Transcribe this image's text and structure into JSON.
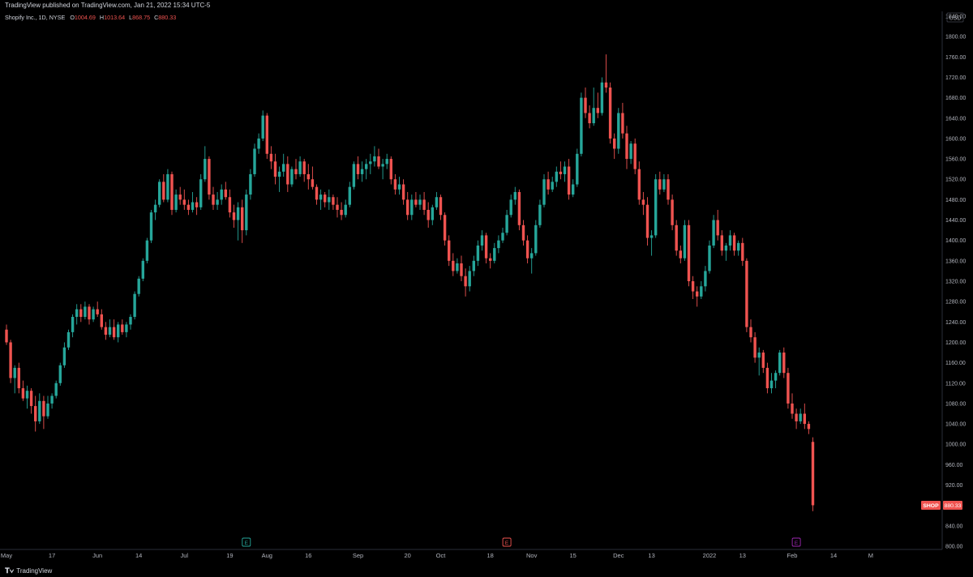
{
  "header": {
    "published": "TradingView published on TradingView.com, Jan 21, 2022 15:34 UTC-5"
  },
  "legend": {
    "symbol": "Shopify Inc., 1D, NYSE",
    "o_label": "O",
    "o": "1004.69",
    "h_label": "H",
    "h": "1013.64",
    "l_label": "L",
    "l": "868.75",
    "c_label": "C",
    "c": "880.33"
  },
  "price_axis": {
    "currency": "USD"
  },
  "last_price": {
    "ticker": "SHOP",
    "value": "880.33"
  },
  "events": [
    {
      "label": "E",
      "date_index": 58,
      "color": "#26a69a"
    },
    {
      "label": "E",
      "date_index": 121,
      "color": "#ef5350"
    },
    {
      "label": "E",
      "date_index": 191,
      "color": "#9c27b0"
    }
  ],
  "footer": {
    "brand": "TradingView"
  },
  "colors": {
    "up": "#26a69a",
    "down": "#ef5350",
    "axis_text": "#b2b5be",
    "bg": "#000000",
    "purple": "#9c27b0"
  },
  "chart_data": {
    "type": "candlestick",
    "ylim": [
      800,
      1840
    ],
    "y_ticks": [
      800,
      840,
      880,
      920,
      960,
      1000,
      1040,
      1080,
      1120,
      1160,
      1200,
      1240,
      1280,
      1320,
      1360,
      1400,
      1440,
      1480,
      1520,
      1560,
      1600,
      1640,
      1680,
      1720,
      1760,
      1800,
      1840
    ],
    "x_tick_labels": [
      {
        "label": "May",
        "i": 0
      },
      {
        "label": "17",
        "i": 11
      },
      {
        "label": "Jun",
        "i": 22
      },
      {
        "label": "14",
        "i": 32
      },
      {
        "label": "Jul",
        "i": 43
      },
      {
        "label": "19",
        "i": 54
      },
      {
        "label": "Aug",
        "i": 63
      },
      {
        "label": "16",
        "i": 73
      },
      {
        "label": "Sep",
        "i": 85
      },
      {
        "label": "20",
        "i": 97
      },
      {
        "label": "Oct",
        "i": 105
      },
      {
        "label": "18",
        "i": 117
      },
      {
        "label": "Nov",
        "i": 127
      },
      {
        "label": "15",
        "i": 137
      },
      {
        "label": "Dec",
        "i": 148
      },
      {
        "label": "13",
        "i": 156
      },
      {
        "label": "2022",
        "i": 170
      },
      {
        "label": "13",
        "i": 178
      },
      {
        "label": "Feb",
        "i": 190
      },
      {
        "label": "14",
        "i": 200
      },
      {
        "label": "M",
        "i": 209
      }
    ],
    "ohlc": [
      [
        1225,
        1235,
        1195,
        1200
      ],
      [
        1200,
        1205,
        1120,
        1130
      ],
      [
        1130,
        1155,
        1100,
        1150
      ],
      [
        1150,
        1160,
        1100,
        1110
      ],
      [
        1110,
        1125,
        1085,
        1090
      ],
      [
        1090,
        1115,
        1070,
        1105
      ],
      [
        1105,
        1110,
        1060,
        1075
      ],
      [
        1075,
        1095,
        1025,
        1045
      ],
      [
        1045,
        1100,
        1040,
        1085
      ],
      [
        1085,
        1095,
        1030,
        1055
      ],
      [
        1055,
        1095,
        1050,
        1080
      ],
      [
        1080,
        1100,
        1070,
        1095
      ],
      [
        1095,
        1125,
        1090,
        1120
      ],
      [
        1120,
        1160,
        1115,
        1155
      ],
      [
        1155,
        1200,
        1150,
        1190
      ],
      [
        1190,
        1225,
        1185,
        1220
      ],
      [
        1220,
        1255,
        1210,
        1250
      ],
      [
        1250,
        1275,
        1235,
        1265
      ],
      [
        1265,
        1275,
        1240,
        1250
      ],
      [
        1250,
        1280,
        1245,
        1270
      ],
      [
        1270,
        1275,
        1235,
        1245
      ],
      [
        1245,
        1270,
        1240,
        1265
      ],
      [
        1265,
        1280,
        1250,
        1255
      ],
      [
        1255,
        1265,
        1225,
        1230
      ],
      [
        1230,
        1240,
        1205,
        1215
      ],
      [
        1215,
        1245,
        1210,
        1230
      ],
      [
        1230,
        1245,
        1205,
        1210
      ],
      [
        1210,
        1240,
        1200,
        1235
      ],
      [
        1235,
        1245,
        1215,
        1220
      ],
      [
        1220,
        1240,
        1210,
        1235
      ],
      [
        1235,
        1255,
        1225,
        1250
      ],
      [
        1250,
        1300,
        1245,
        1295
      ],
      [
        1295,
        1330,
        1290,
        1325
      ],
      [
        1325,
        1365,
        1320,
        1360
      ],
      [
        1360,
        1405,
        1355,
        1400
      ],
      [
        1400,
        1460,
        1395,
        1455
      ],
      [
        1455,
        1480,
        1440,
        1470
      ],
      [
        1470,
        1520,
        1465,
        1515
      ],
      [
        1515,
        1530,
        1475,
        1480
      ],
      [
        1480,
        1540,
        1475,
        1530
      ],
      [
        1530,
        1535,
        1450,
        1460
      ],
      [
        1460,
        1500,
        1455,
        1490
      ],
      [
        1490,
        1505,
        1470,
        1480
      ],
      [
        1480,
        1500,
        1460,
        1470
      ],
      [
        1470,
        1480,
        1450,
        1460
      ],
      [
        1460,
        1495,
        1455,
        1475
      ],
      [
        1475,
        1485,
        1450,
        1465
      ],
      [
        1465,
        1530,
        1460,
        1520
      ],
      [
        1520,
        1585,
        1515,
        1560
      ],
      [
        1560,
        1565,
        1480,
        1490
      ],
      [
        1490,
        1505,
        1460,
        1470
      ],
      [
        1470,
        1495,
        1460,
        1480
      ],
      [
        1480,
        1510,
        1470,
        1500
      ],
      [
        1500,
        1515,
        1480,
        1485
      ],
      [
        1485,
        1500,
        1445,
        1455
      ],
      [
        1455,
        1470,
        1425,
        1440
      ],
      [
        1440,
        1475,
        1400,
        1465
      ],
      [
        1465,
        1480,
        1395,
        1420
      ],
      [
        1420,
        1500,
        1410,
        1490
      ],
      [
        1490,
        1540,
        1480,
        1530
      ],
      [
        1530,
        1590,
        1525,
        1580
      ],
      [
        1580,
        1610,
        1570,
        1600
      ],
      [
        1600,
        1655,
        1595,
        1645
      ],
      [
        1645,
        1650,
        1560,
        1570
      ],
      [
        1570,
        1585,
        1540,
        1555
      ],
      [
        1555,
        1570,
        1510,
        1525
      ],
      [
        1525,
        1545,
        1495,
        1535
      ],
      [
        1535,
        1570,
        1525,
        1550
      ],
      [
        1550,
        1565,
        1495,
        1510
      ],
      [
        1510,
        1545,
        1505,
        1540
      ],
      [
        1540,
        1560,
        1520,
        1530
      ],
      [
        1530,
        1565,
        1525,
        1555
      ],
      [
        1555,
        1560,
        1515,
        1530
      ],
      [
        1530,
        1550,
        1500,
        1520
      ],
      [
        1520,
        1545,
        1500,
        1505
      ],
      [
        1505,
        1510,
        1470,
        1480
      ],
      [
        1480,
        1500,
        1460,
        1490
      ],
      [
        1490,
        1495,
        1465,
        1475
      ],
      [
        1475,
        1500,
        1460,
        1485
      ],
      [
        1485,
        1490,
        1460,
        1470
      ],
      [
        1470,
        1485,
        1445,
        1460
      ],
      [
        1460,
        1475,
        1440,
        1450
      ],
      [
        1450,
        1480,
        1445,
        1470
      ],
      [
        1470,
        1515,
        1465,
        1505
      ],
      [
        1505,
        1555,
        1500,
        1550
      ],
      [
        1550,
        1565,
        1520,
        1530
      ],
      [
        1530,
        1555,
        1515,
        1540
      ],
      [
        1540,
        1560,
        1520,
        1550
      ],
      [
        1550,
        1570,
        1530,
        1555
      ],
      [
        1555,
        1585,
        1545,
        1565
      ],
      [
        1565,
        1580,
        1540,
        1545
      ],
      [
        1545,
        1560,
        1520,
        1550
      ],
      [
        1550,
        1570,
        1540,
        1560
      ],
      [
        1560,
        1565,
        1510,
        1520
      ],
      [
        1520,
        1530,
        1490,
        1500
      ],
      [
        1500,
        1525,
        1490,
        1510
      ],
      [
        1510,
        1520,
        1470,
        1480
      ],
      [
        1480,
        1495,
        1440,
        1450
      ],
      [
        1450,
        1490,
        1440,
        1480
      ],
      [
        1480,
        1495,
        1465,
        1470
      ],
      [
        1470,
        1490,
        1460,
        1480
      ],
      [
        1480,
        1495,
        1450,
        1460
      ],
      [
        1460,
        1475,
        1425,
        1440
      ],
      [
        1440,
        1470,
        1430,
        1465
      ],
      [
        1465,
        1495,
        1460,
        1485
      ],
      [
        1485,
        1490,
        1440,
        1450
      ],
      [
        1450,
        1455,
        1390,
        1400
      ],
      [
        1400,
        1410,
        1350,
        1360
      ],
      [
        1360,
        1375,
        1330,
        1340
      ],
      [
        1340,
        1365,
        1335,
        1355
      ],
      [
        1355,
        1370,
        1320,
        1330
      ],
      [
        1330,
        1345,
        1290,
        1310
      ],
      [
        1310,
        1350,
        1300,
        1340
      ],
      [
        1340,
        1370,
        1330,
        1360
      ],
      [
        1360,
        1400,
        1350,
        1390
      ],
      [
        1390,
        1420,
        1380,
        1410
      ],
      [
        1410,
        1415,
        1355,
        1365
      ],
      [
        1365,
        1375,
        1345,
        1360
      ],
      [
        1360,
        1395,
        1355,
        1385
      ],
      [
        1385,
        1410,
        1375,
        1400
      ],
      [
        1400,
        1425,
        1395,
        1415
      ],
      [
        1415,
        1460,
        1410,
        1450
      ],
      [
        1450,
        1490,
        1445,
        1480
      ],
      [
        1480,
        1505,
        1470,
        1495
      ],
      [
        1495,
        1500,
        1420,
        1430
      ],
      [
        1430,
        1440,
        1390,
        1400
      ],
      [
        1400,
        1410,
        1355,
        1365
      ],
      [
        1365,
        1385,
        1335,
        1375
      ],
      [
        1375,
        1440,
        1370,
        1430
      ],
      [
        1430,
        1480,
        1425,
        1470
      ],
      [
        1470,
        1530,
        1465,
        1520
      ],
      [
        1520,
        1535,
        1490,
        1500
      ],
      [
        1500,
        1525,
        1495,
        1515
      ],
      [
        1515,
        1545,
        1505,
        1535
      ],
      [
        1535,
        1555,
        1520,
        1530
      ],
      [
        1530,
        1555,
        1515,
        1545
      ],
      [
        1545,
        1560,
        1480,
        1490
      ],
      [
        1490,
        1520,
        1485,
        1510
      ],
      [
        1510,
        1580,
        1505,
        1570
      ],
      [
        1570,
        1690,
        1565,
        1680
      ],
      [
        1680,
        1700,
        1640,
        1650
      ],
      [
        1650,
        1665,
        1620,
        1630
      ],
      [
        1630,
        1700,
        1625,
        1660
      ],
      [
        1660,
        1690,
        1640,
        1650
      ],
      [
        1650,
        1720,
        1645,
        1710
      ],
      [
        1710,
        1765,
        1690,
        1700
      ],
      [
        1700,
        1710,
        1590,
        1600
      ],
      [
        1600,
        1610,
        1560,
        1580
      ],
      [
        1580,
        1660,
        1570,
        1650
      ],
      [
        1650,
        1670,
        1600,
        1610
      ],
      [
        1610,
        1625,
        1540,
        1560
      ],
      [
        1560,
        1595,
        1550,
        1590
      ],
      [
        1590,
        1600,
        1530,
        1540
      ],
      [
        1540,
        1555,
        1470,
        1480
      ],
      [
        1480,
        1495,
        1450,
        1470
      ],
      [
        1470,
        1485,
        1390,
        1405
      ],
      [
        1405,
        1420,
        1370,
        1410
      ],
      [
        1410,
        1530,
        1405,
        1520
      ],
      [
        1520,
        1535,
        1490,
        1500
      ],
      [
        1500,
        1530,
        1495,
        1520
      ],
      [
        1520,
        1530,
        1470,
        1480
      ],
      [
        1480,
        1490,
        1420,
        1430
      ],
      [
        1430,
        1440,
        1370,
        1380
      ],
      [
        1380,
        1390,
        1355,
        1365
      ],
      [
        1365,
        1440,
        1360,
        1430
      ],
      [
        1430,
        1440,
        1310,
        1320
      ],
      [
        1320,
        1330,
        1285,
        1300
      ],
      [
        1300,
        1310,
        1270,
        1290
      ],
      [
        1290,
        1320,
        1285,
        1310
      ],
      [
        1310,
        1350,
        1300,
        1340
      ],
      [
        1340,
        1400,
        1335,
        1390
      ],
      [
        1390,
        1450,
        1385,
        1440
      ],
      [
        1440,
        1460,
        1400,
        1410
      ],
      [
        1410,
        1420,
        1370,
        1380
      ],
      [
        1380,
        1395,
        1360,
        1390
      ],
      [
        1390,
        1420,
        1380,
        1410
      ],
      [
        1410,
        1415,
        1370,
        1380
      ],
      [
        1380,
        1400,
        1370,
        1395
      ],
      [
        1395,
        1405,
        1350,
        1360
      ],
      [
        1360,
        1365,
        1220,
        1230
      ],
      [
        1230,
        1245,
        1200,
        1210
      ],
      [
        1210,
        1220,
        1160,
        1170
      ],
      [
        1170,
        1190,
        1135,
        1180
      ],
      [
        1180,
        1185,
        1140,
        1150
      ],
      [
        1150,
        1160,
        1100,
        1110
      ],
      [
        1110,
        1140,
        1100,
        1125
      ],
      [
        1125,
        1145,
        1110,
        1140
      ],
      [
        1140,
        1185,
        1135,
        1180
      ],
      [
        1180,
        1190,
        1130,
        1140
      ],
      [
        1140,
        1150,
        1070,
        1080
      ],
      [
        1080,
        1100,
        1050,
        1060
      ],
      [
        1060,
        1070,
        1030,
        1045
      ],
      [
        1045,
        1070,
        1040,
        1060
      ],
      [
        1060,
        1080,
        1030,
        1040
      ],
      [
        1040,
        1045,
        1020,
        1030
      ],
      [
        1004.69,
        1013.64,
        868.75,
        880.33
      ]
    ]
  }
}
